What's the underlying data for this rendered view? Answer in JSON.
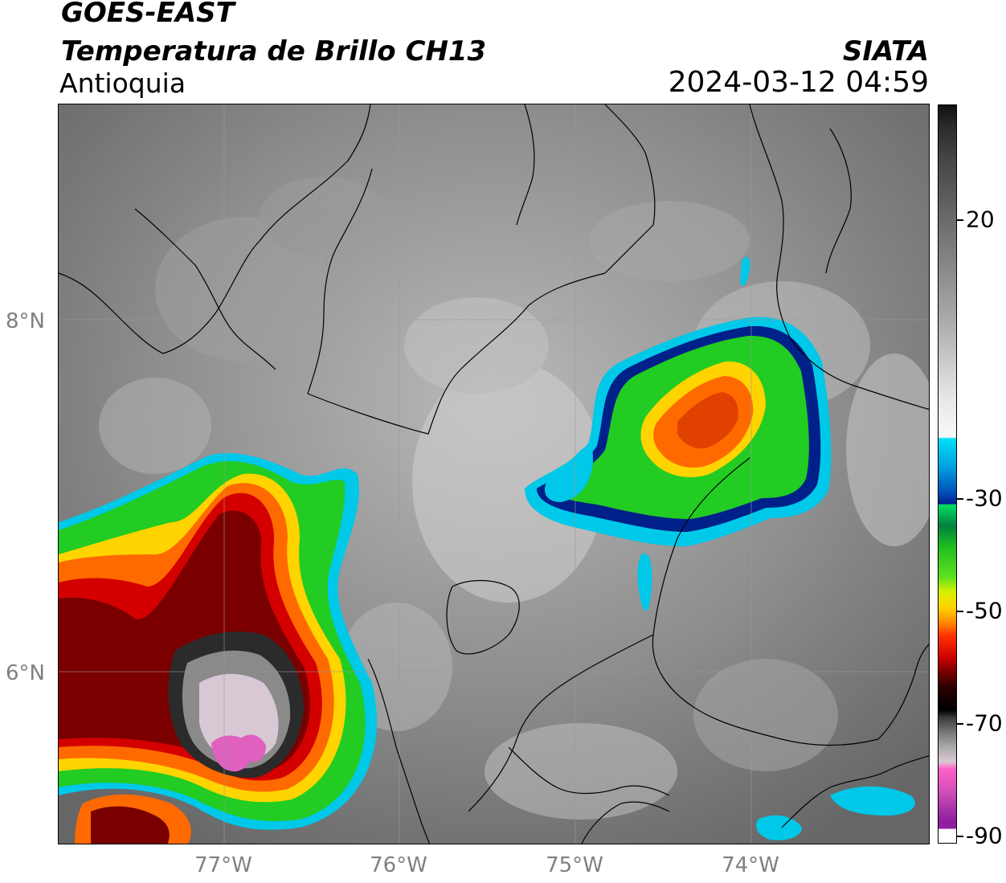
{
  "header": {
    "satellite": "GOES-EAST",
    "product": "Temperatura de Brillo CH13",
    "region": "Antioquia",
    "organization": "SIATA",
    "datetime": "2024-03-12 04:59"
  },
  "axes": {
    "lat_labels": [
      "8°N",
      "6°N"
    ],
    "lon_labels": [
      "77°W",
      "76°W",
      "75°W",
      "74°W"
    ]
  },
  "colorbar": {
    "tick_labels": [
      "20",
      "-30",
      "-50",
      "-70",
      "-90"
    ]
  },
  "colors": {
    "cold_top_pink": "#e060c0",
    "deep_red": "#7a0000",
    "green": "#22cc22",
    "cyan": "#00c8e8",
    "navy": "#00208a"
  }
}
